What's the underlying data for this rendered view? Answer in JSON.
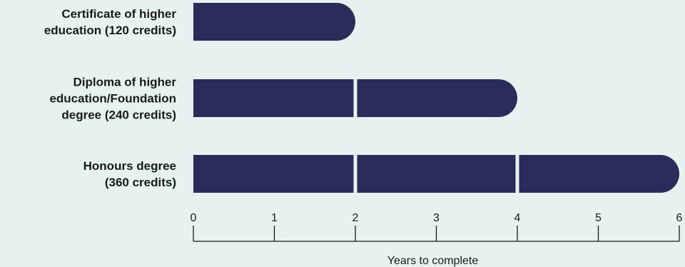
{
  "chart_data": {
    "type": "bar",
    "orientation": "horizontal",
    "categories": [
      "Certificate of higher education (120 credits)",
      "Diploma of higher education/Foundation degree (240 credits)",
      "Honours degree (360 credits)"
    ],
    "category_label_lines": [
      [
        "Certificate of higher",
        "education (120 credits)"
      ],
      [
        "Diploma of higher",
        "education/Foundation",
        "degree (240 credits)"
      ],
      [
        "Honours degree",
        "(360 credits)"
      ]
    ],
    "values": [
      2,
      4,
      6
    ],
    "segments": [
      [
        2
      ],
      [
        2,
        2
      ],
      [
        2,
        2,
        2
      ]
    ],
    "xlabel": "Years to complete",
    "xlim": [
      0,
      6
    ],
    "xticks": [
      "0",
      "1",
      "2",
      "3",
      "4",
      "5",
      "6"
    ],
    "grid": false,
    "bar_color": "#2b2c5a",
    "background_color": "#e6f2f0",
    "axis_color": "#1a1a1a"
  }
}
